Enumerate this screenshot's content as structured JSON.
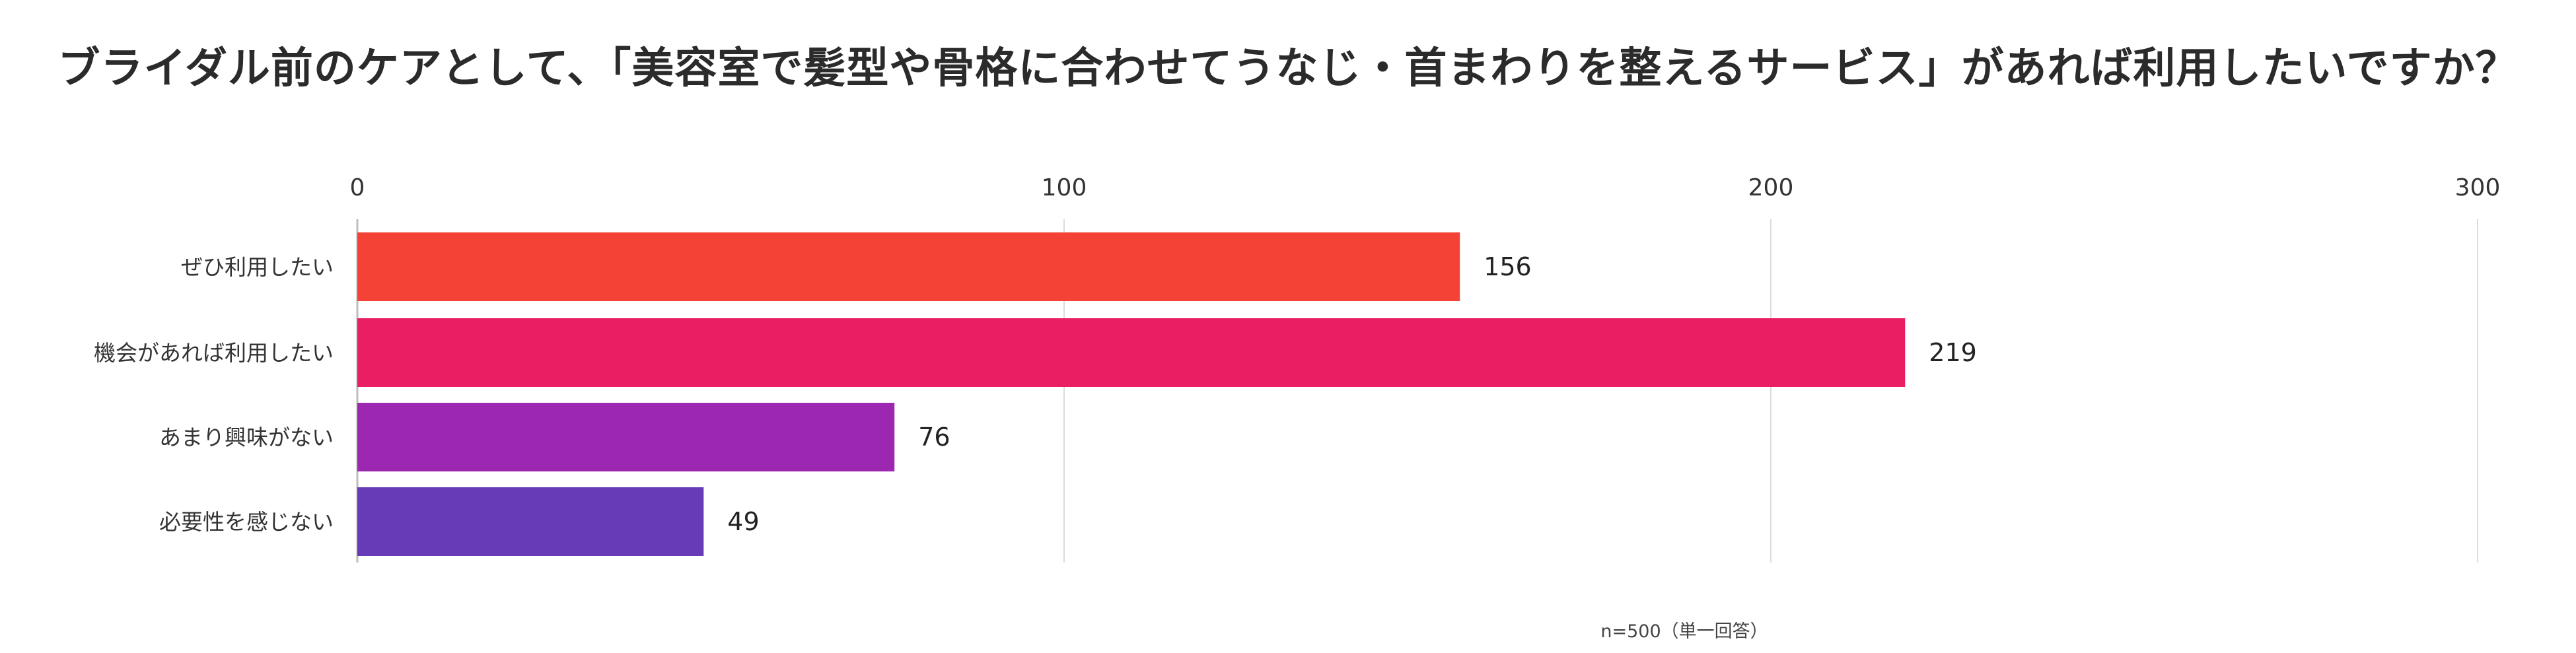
{
  "chart_data": {
    "type": "bar",
    "orientation": "horizontal",
    "title": "ブライダル前のケアとして、「美容室で髪型や骨格に合わせてうなじ・首まわりを整えるサービス」があれば利用したいですか？",
    "categories": [
      "ぜひ利用したい",
      "機会があれば利用したい",
      "あまり興味がない",
      "必要性を感じない"
    ],
    "values": [
      156,
      219,
      76,
      49
    ],
    "colors": [
      "#f44336",
      "#e91e63",
      "#9c27b0",
      "#673ab7"
    ],
    "xlim": [
      0,
      300
    ],
    "xticks": [
      0,
      100,
      200,
      300
    ],
    "tick_labels": [
      "0",
      "100",
      "200",
      "300"
    ],
    "value_labels": [
      "156",
      "219",
      "76",
      "49"
    ],
    "xlabel": "",
    "ylabel": "",
    "grid": true,
    "legend": "none",
    "note": "n=500（単一回答）"
  }
}
